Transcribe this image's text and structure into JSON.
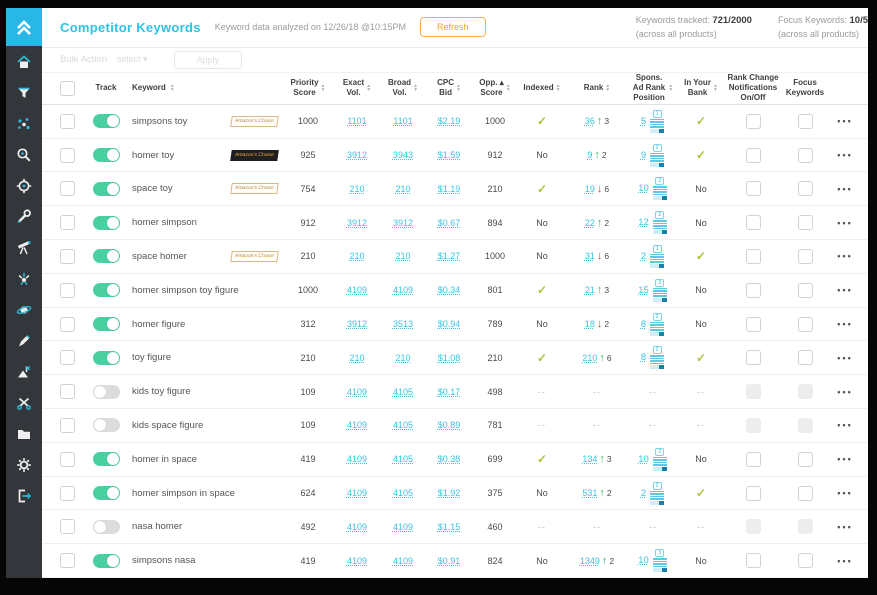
{
  "header": {
    "title": "Competitor Keywords",
    "analyzed": "Keyword data analyzed on 12/26/18 @10:15PM",
    "refresh_label": "Refresh",
    "tracked_label": "Keywords tracked:",
    "tracked_value": "721/2000",
    "tracked_sub": "(across all products)",
    "focus_label": "Focus Keywords:",
    "focus_value": "10/5",
    "focus_sub": "(across all products)"
  },
  "bulk": {
    "label": "Bulk Action",
    "select_value": "select",
    "select_caret": "▾",
    "apply_label": "Apply"
  },
  "sidebar": {
    "logo": "double-chevron-up-logo",
    "items": [
      {
        "name": "home"
      },
      {
        "name": "funnel"
      },
      {
        "name": "cluster"
      },
      {
        "name": "search"
      },
      {
        "name": "target"
      },
      {
        "name": "wrench"
      },
      {
        "name": "telescope"
      },
      {
        "name": "sparkle"
      },
      {
        "name": "planet"
      },
      {
        "name": "pen"
      },
      {
        "name": "flag-mountain"
      },
      {
        "name": "scissors"
      },
      {
        "name": "folder"
      },
      {
        "name": "gear"
      },
      {
        "name": "logout"
      }
    ]
  },
  "table": {
    "row_menu": "•••",
    "check_glyph": "✓",
    "dash_glyph": "--",
    "up_glyph": "↑",
    "down_glyph": "↓",
    "columns": [
      {
        "id": "select",
        "label": "",
        "sortable": false
      },
      {
        "id": "track",
        "label": "Track",
        "sortable": false
      },
      {
        "id": "keyword",
        "label": "Keyword",
        "sortable": true
      },
      {
        "id": "priority",
        "label": "Priority\nScore",
        "sortable": true
      },
      {
        "id": "exact",
        "label": "Exact\nVol.",
        "sortable": true
      },
      {
        "id": "broad",
        "label": "Broad\nVol.",
        "sortable": true
      },
      {
        "id": "cpc",
        "label": "CPC\nBid",
        "sortable": true
      },
      {
        "id": "opp",
        "label": "Opp. ▴\nScore",
        "sortable": true
      },
      {
        "id": "indexed",
        "label": "Indexed",
        "sortable": true
      },
      {
        "id": "rank",
        "label": "Rank",
        "sortable": true
      },
      {
        "id": "spons",
        "label": "Spons.\nAd Rank\nPosition",
        "sortable": true
      },
      {
        "id": "bank",
        "label": "In Your\nBank",
        "sortable": true
      },
      {
        "id": "notif",
        "label": "Rank Change\nNotifications\nOn/Off",
        "sortable": false
      },
      {
        "id": "focus",
        "label": "Focus\nKeywords",
        "sortable": false
      },
      {
        "id": "menu",
        "label": "",
        "sortable": false
      }
    ],
    "rows": [
      {
        "keyword": "simpsons toy",
        "badge": "light",
        "badge_text": "Amazon's Choice",
        "tracked": true,
        "priority": "1000",
        "exact": "1101",
        "broad": "1101",
        "cpc": "$2.19",
        "opp": "1000",
        "indexed": "check",
        "rank": "36",
        "rank_dir": "up",
        "rank_delta": "3",
        "spons": "5",
        "spons_page": "1",
        "bank": "check"
      },
      {
        "keyword": "homer toy",
        "badge": "dark",
        "badge_text": "Amazon's Choice",
        "tracked": true,
        "priority": "925",
        "exact": "3912",
        "broad": "3943",
        "cpc": "$1.59",
        "opp": "912",
        "indexed": "No",
        "rank": "9",
        "rank_dir": "up",
        "rank_delta": "2",
        "spons": "9",
        "spons_page": "2",
        "bank": "check"
      },
      {
        "keyword": "space toy",
        "badge": "light",
        "badge_text": "Amazon's Choice",
        "tracked": true,
        "priority": "754",
        "exact": "210",
        "broad": "210",
        "cpc": "$1.19",
        "opp": "210",
        "indexed": "check",
        "rank": "19",
        "rank_dir": "down",
        "rank_delta": "6",
        "spons": "10",
        "spons_page": "2",
        "bank": "No"
      },
      {
        "keyword": "homer simpson",
        "badge": null,
        "badge_text": "",
        "tracked": true,
        "priority": "912",
        "exact": "3912",
        "broad": "3912",
        "cpc": "$0.67",
        "opp": "894",
        "indexed": "No",
        "rank": "22",
        "rank_dir": "up",
        "rank_delta": "2",
        "spons": "12",
        "spons_page": "2",
        "bank": "No"
      },
      {
        "keyword": "space homer",
        "badge": "light",
        "badge_text": "Amazon's Choice",
        "tracked": true,
        "priority": "210",
        "exact": "210",
        "broad": "210",
        "cpc": "$1.27",
        "opp": "1000",
        "indexed": "No",
        "rank": "31",
        "rank_dir": "down",
        "rank_delta": "6",
        "spons": "2",
        "spons_page": "1",
        "bank": "check"
      },
      {
        "keyword": "homer simpson toy figure",
        "badge": null,
        "badge_text": "",
        "tracked": true,
        "priority": "1000",
        "exact": "4109",
        "broad": "4109",
        "cpc": "$0.34",
        "opp": "801",
        "indexed": "check",
        "rank": "21",
        "rank_dir": "up",
        "rank_delta": "3",
        "spons": "15",
        "spons_page": "3",
        "bank": "No"
      },
      {
        "keyword": "homer figure",
        "badge": null,
        "badge_text": "",
        "tracked": true,
        "priority": "312",
        "exact": "3912",
        "broad": "3513",
        "cpc": "$0.94",
        "opp": "789",
        "indexed": "No",
        "rank": "18",
        "rank_dir": "down",
        "rank_delta": "2",
        "spons": "8",
        "spons_page": "2",
        "bank": "No"
      },
      {
        "keyword": "toy figure",
        "badge": null,
        "badge_text": "",
        "tracked": true,
        "priority": "210",
        "exact": "210",
        "broad": "210",
        "cpc": "$1.08",
        "opp": "210",
        "indexed": "check",
        "rank": "210",
        "rank_dir": "up",
        "rank_delta": "6",
        "spons": "8",
        "spons_page": "2",
        "bank": "check"
      },
      {
        "keyword": "kids toy figure",
        "badge": null,
        "badge_text": "",
        "tracked": false,
        "priority": "109",
        "exact": "4109",
        "broad": "4105",
        "cpc": "$0.17",
        "opp": "498",
        "indexed": "--",
        "rank": "--",
        "rank_dir": null,
        "rank_delta": "",
        "spons": "--",
        "spons_page": "",
        "bank": "--"
      },
      {
        "keyword": "kids space figure",
        "badge": null,
        "badge_text": "",
        "tracked": false,
        "priority": "109",
        "exact": "4109",
        "broad": "4105",
        "cpc": "$0.89",
        "opp": "781",
        "indexed": "--",
        "rank": "--",
        "rank_dir": null,
        "rank_delta": "",
        "spons": "--",
        "spons_page": "",
        "bank": "--"
      },
      {
        "keyword": "homer in space",
        "badge": null,
        "badge_text": "",
        "tracked": true,
        "priority": "419",
        "exact": "4109",
        "broad": "4105",
        "cpc": "$0.38",
        "opp": "699",
        "indexed": "check",
        "rank": "134",
        "rank_dir": "up",
        "rank_delta": "3",
        "spons": "10",
        "spons_page": "2",
        "bank": "No"
      },
      {
        "keyword": "homer simpson in space",
        "badge": null,
        "badge_text": "",
        "tracked": true,
        "priority": "624",
        "exact": "4109",
        "broad": "4105",
        "cpc": "$1.92",
        "opp": "375",
        "indexed": "No",
        "rank": "531",
        "rank_dir": "up",
        "rank_delta": "2",
        "spons": "2",
        "spons_page": "2",
        "bank": "check"
      },
      {
        "keyword": "nasa homer",
        "badge": null,
        "badge_text": "",
        "tracked": false,
        "priority": "492",
        "exact": "4109",
        "broad": "4109",
        "cpc": "$1.15",
        "opp": "460",
        "indexed": "--",
        "rank": "--",
        "rank_dir": null,
        "rank_delta": "",
        "spons": "--",
        "spons_page": "",
        "bank": "--"
      },
      {
        "keyword": "simpsons nasa",
        "badge": null,
        "badge_text": "",
        "tracked": true,
        "priority": "419",
        "exact": "4109",
        "broad": "4109",
        "cpc": "$0.91",
        "opp": "824",
        "indexed": "No",
        "rank": "1349",
        "rank_dir": "up",
        "rank_delta": "2",
        "spons": "10",
        "spons_page": "3",
        "bank": "No"
      }
    ]
  },
  "colors": {
    "accent_teal": "#2cc3e6",
    "toggle_green": "#4ad0a0",
    "check_green": "#a8c53a",
    "up_green": "#3dbb61",
    "down_red": "#e23b3b",
    "refresh_orange": "#f0a030",
    "sidebar_bg": "#33373b",
    "logo_bg": "#29b8e5"
  }
}
